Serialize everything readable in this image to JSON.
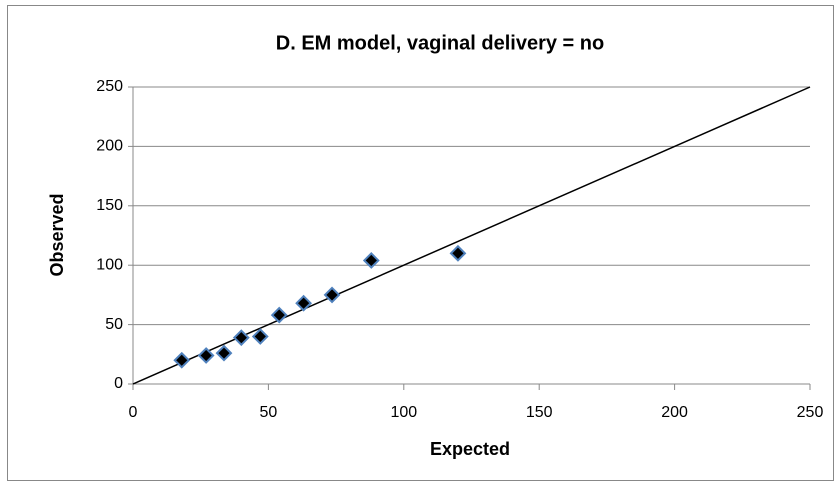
{
  "chart_data": {
    "type": "scatter",
    "title": "D. EM model, vaginal delivery = no",
    "xlabel": "Expected",
    "ylabel": "Observed",
    "series": [
      {
        "type": "scatter",
        "color": "#000000",
        "edgecolor": "#4f81bd",
        "x": [
          18,
          27,
          33.6,
          40,
          47,
          54,
          63,
          73.5,
          88,
          120
        ],
        "values": [
          20,
          24,
          26,
          39,
          40,
          58,
          68,
          75,
          104,
          110
        ]
      },
      {
        "type": "line",
        "color": "#000000",
        "x": [
          0,
          250
        ],
        "values": [
          0,
          250
        ]
      }
    ],
    "xlim": [
      0,
      250
    ],
    "xticks": [
      0,
      50,
      100,
      150,
      200,
      250
    ],
    "ylim": [
      0,
      250
    ],
    "yticks": [
      0,
      50,
      100,
      150,
      200,
      250
    ],
    "grid": true
  }
}
